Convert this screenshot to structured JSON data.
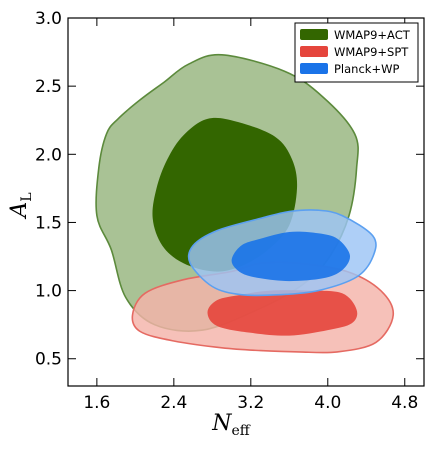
{
  "chart_data": {
    "type": "contour",
    "xlabel_main": "N",
    "xlabel_sub": "eff",
    "ylabel_main": "A",
    "ylabel_sub": "L",
    "xlim": [
      1.3,
      5.0
    ],
    "ylim": [
      0.3,
      3.0
    ],
    "xticks": [
      "1.6",
      "2.4",
      "3.2",
      "4.0",
      "4.8"
    ],
    "xtick_values": [
      1.6,
      2.4,
      3.2,
      4.0,
      4.8
    ],
    "yticks": [
      "0.5",
      "1.0",
      "1.5",
      "2.0",
      "2.5",
      "3.0"
    ],
    "ytick_values": [
      0.5,
      1.0,
      1.5,
      2.0,
      2.5,
      3.0
    ],
    "legend_position": "top-right",
    "series": [
      {
        "name": "WMAP9+ACT",
        "color": "#336600",
        "outer_fill": "#a9c295",
        "edge": "#5c8a3c",
        "contours": {
          "outer": [
            [
              2.9,
              2.73
            ],
            [
              3.55,
              2.61
            ],
            [
              3.95,
              2.42
            ],
            [
              4.28,
              2.15
            ],
            [
              4.3,
              1.9
            ],
            [
              4.22,
              1.55
            ],
            [
              4.02,
              1.25
            ],
            [
              3.75,
              1.05
            ],
            [
              3.3,
              0.87
            ],
            [
              2.7,
              0.71
            ],
            [
              2.2,
              0.75
            ],
            [
              1.9,
              0.95
            ],
            [
              1.75,
              1.3
            ],
            [
              1.6,
              1.55
            ],
            [
              1.62,
              1.9
            ],
            [
              1.7,
              2.15
            ],
            [
              1.82,
              2.26
            ],
            [
              2.05,
              2.4
            ],
            [
              2.3,
              2.53
            ],
            [
              2.55,
              2.66
            ]
          ],
          "inner": [
            [
              2.75,
              2.26
            ],
            [
              3.05,
              2.24
            ],
            [
              3.45,
              2.13
            ],
            [
              3.63,
              1.96
            ],
            [
              3.68,
              1.75
            ],
            [
              3.6,
              1.48
            ],
            [
              3.38,
              1.3
            ],
            [
              3.1,
              1.18
            ],
            [
              2.82,
              1.14
            ],
            [
              2.5,
              1.2
            ],
            [
              2.28,
              1.33
            ],
            [
              2.18,
              1.53
            ],
            [
              2.22,
              1.75
            ],
            [
              2.33,
              1.96
            ],
            [
              2.5,
              2.14
            ]
          ]
        }
      },
      {
        "name": "WMAP9+SPT",
        "color": "#e5453c",
        "outer_fill": "#f4b3aa",
        "edge": "#e56a62",
        "contours": {
          "outer": [
            [
              3.7,
              1.2
            ],
            [
              4.2,
              1.14
            ],
            [
              4.55,
              1.0
            ],
            [
              4.68,
              0.82
            ],
            [
              4.5,
              0.62
            ],
            [
              4.1,
              0.55
            ],
            [
              3.7,
              0.55
            ],
            [
              3.3,
              0.56
            ],
            [
              2.9,
              0.58
            ],
            [
              2.4,
              0.63
            ],
            [
              2.05,
              0.7
            ],
            [
              1.97,
              0.82
            ],
            [
              2.1,
              0.98
            ],
            [
              2.5,
              1.08
            ],
            [
              3.0,
              1.14
            ],
            [
              3.3,
              1.2
            ]
          ],
          "inner": [
            [
              3.1,
              0.97
            ],
            [
              3.4,
              1.0
            ],
            [
              3.8,
              1.0
            ],
            [
              4.15,
              0.98
            ],
            [
              4.3,
              0.86
            ],
            [
              4.25,
              0.76
            ],
            [
              4.0,
              0.71
            ],
            [
              3.6,
              0.67
            ],
            [
              3.2,
              0.69
            ],
            [
              2.85,
              0.74
            ],
            [
              2.75,
              0.84
            ],
            [
              2.85,
              0.93
            ]
          ]
        }
      },
      {
        "name": "Planck+WP",
        "color": "#1a73e8",
        "outer_fill": "#9cc4f5",
        "edge": "#5ca0f0",
        "contours": {
          "outer": [
            [
              3.3,
              1.53
            ],
            [
              3.6,
              1.58
            ],
            [
              3.9,
              1.59
            ],
            [
              4.15,
              1.55
            ],
            [
              4.47,
              1.4
            ],
            [
              4.47,
              1.25
            ],
            [
              4.3,
              1.1
            ],
            [
              3.9,
              1.0
            ],
            [
              3.5,
              0.97
            ],
            [
              3.1,
              0.97
            ],
            [
              2.8,
              1.03
            ],
            [
              2.57,
              1.2
            ],
            [
              2.6,
              1.33
            ],
            [
              2.85,
              1.44
            ]
          ],
          "inner": [
            [
              3.3,
              1.38
            ],
            [
              3.6,
              1.43
            ],
            [
              3.9,
              1.42
            ],
            [
              4.1,
              1.38
            ],
            [
              4.23,
              1.26
            ],
            [
              4.15,
              1.15
            ],
            [
              3.95,
              1.09
            ],
            [
              3.6,
              1.07
            ],
            [
              3.3,
              1.09
            ],
            [
              3.1,
              1.13
            ],
            [
              3.0,
              1.22
            ],
            [
              3.1,
              1.33
            ]
          ]
        }
      }
    ]
  }
}
